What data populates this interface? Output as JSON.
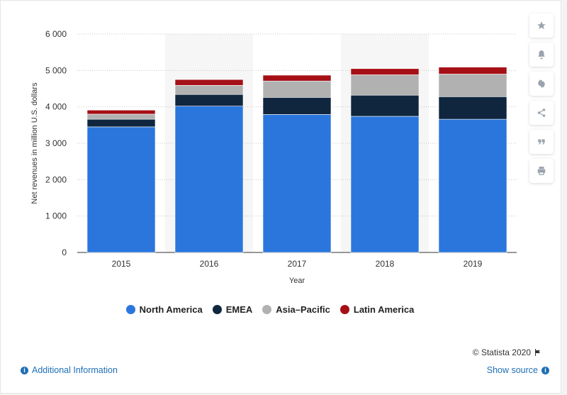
{
  "chart_data": {
    "type": "bar",
    "stacked": true,
    "categories": [
      "2015",
      "2016",
      "2017",
      "2018",
      "2019"
    ],
    "series": [
      {
        "name": "North America",
        "color": "#2a76dd",
        "values": [
          3450,
          4020,
          3790,
          3740,
          3660
        ]
      },
      {
        "name": "EMEA",
        "color": "#10263f",
        "values": [
          210,
          320,
          470,
          580,
          620
        ]
      },
      {
        "name": "Asia–Pacific",
        "color": "#b1b1b1",
        "values": [
          140,
          250,
          450,
          560,
          620
        ]
      },
      {
        "name": "Latin America",
        "color": "#a50f15",
        "values": [
          110,
          160,
          160,
          170,
          190
        ]
      }
    ],
    "xlabel": "Year",
    "ylabel": "Net revenues in million U.S. dollars",
    "ylim": [
      0,
      6000
    ],
    "yticks": [
      0,
      1000,
      2000,
      3000,
      4000,
      5000,
      6000
    ],
    "ytick_labels": [
      "0",
      "1 000",
      "2 000",
      "3 000",
      "4 000",
      "5 000",
      "6 000"
    ],
    "grid": true,
    "legend_position": "bottom"
  },
  "sidebar": {
    "icons": [
      "star-icon",
      "bell-icon",
      "gear-icon",
      "share-icon",
      "quote-icon",
      "print-icon"
    ]
  },
  "footer": {
    "credit": "© Statista 2020",
    "additional_info": "Additional Information",
    "show_source": "Show source"
  }
}
